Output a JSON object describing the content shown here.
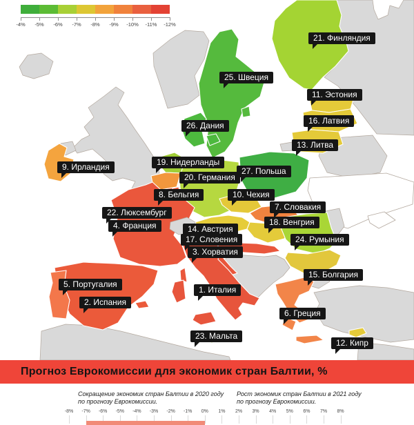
{
  "legend": {
    "colors": [
      "#3fae3b",
      "#5cbc35",
      "#a8d036",
      "#ddc733",
      "#f2a33b",
      "#f0823c",
      "#e9603f",
      "#e34234"
    ],
    "ticks": [
      "-4%",
      "-5%",
      "-6%",
      "-7%",
      "-8%",
      "-9%",
      "-10%",
      "-11%",
      "-12%"
    ]
  },
  "countries": [
    {
      "id": "italy",
      "label": "1. Италия",
      "color": "#e7553c"
    },
    {
      "id": "spain",
      "label": "2. Испания",
      "color": "#eb5a3a"
    },
    {
      "id": "croatia",
      "label": "3. Хорватия",
      "color": "#e9563c"
    },
    {
      "id": "france",
      "label": "4. Франция",
      "color": "#ea573c"
    },
    {
      "id": "portugal",
      "label": "5. Португалия",
      "color": "#f3774b"
    },
    {
      "id": "greece",
      "label": "6. Греция",
      "color": "#f28549"
    },
    {
      "id": "slovakia",
      "label": "7. Словакия",
      "color": "#f0823f"
    },
    {
      "id": "belgium",
      "label": "8. Бельгия",
      "color": "#f2973d"
    },
    {
      "id": "ireland",
      "label": "9. Ирландия",
      "color": "#f4a43e"
    },
    {
      "id": "czechia",
      "label": "10. Чехия",
      "color": "#e4c839"
    },
    {
      "id": "estonia",
      "label": "11. Эстония",
      "color": "#e4ca39"
    },
    {
      "id": "cyprus",
      "label": "12. Кипр",
      "color": "#e4ca39"
    },
    {
      "id": "lithuania",
      "label": "13. Литва",
      "color": "#e4ca39"
    },
    {
      "id": "austria",
      "label": "14. Австрия",
      "color": "#e6cc3a"
    },
    {
      "id": "bulgaria",
      "label": "15. Болгария",
      "color": "#e2c73c"
    },
    {
      "id": "latvia",
      "label": "16. Латвия",
      "color": "#e4ca39"
    },
    {
      "id": "slovenia",
      "label": "17. Словения",
      "color": "#e0c839"
    },
    {
      "id": "hungary",
      "label": "18. Венгрия",
      "color": "#e4cb3a"
    },
    {
      "id": "netherlands",
      "label": "19. Нидерланды",
      "color": "#a0ce36"
    },
    {
      "id": "germany",
      "label": "20. Германия",
      "color": "#b6d840"
    },
    {
      "id": "finland",
      "label": "21. Финляндия",
      "color": "#a4d433"
    },
    {
      "id": "luxembourg",
      "label": "22. Люксембург",
      "color": "#e8563c"
    },
    {
      "id": "malta",
      "label": "23. Мальта",
      "color": "#96d02f"
    },
    {
      "id": "romania",
      "label": "24. Румыния",
      "color": "#a9d636"
    },
    {
      "id": "sweden",
      "label": "25. Швеция",
      "color": "#55ba3d"
    },
    {
      "id": "denmark",
      "label": "26. Дания",
      "color": "#4db93e"
    },
    {
      "id": "poland",
      "label": "27. Польша",
      "color": "#3fae44"
    }
  ],
  "neutral": {
    "land_color": "#d9d9d9",
    "no_data_fill": "#ffffff",
    "outline_color": "#b3a89e"
  },
  "banner": {
    "title": "Прогноз Еврокомиссии для экономик стран Балтии, %",
    "bg_color": "#ef4539"
  },
  "footer": {
    "left_note_line1": "Сокращение экономик стран Балтии в 2020 году",
    "left_note_line2": "по прогнозу Еврокомиссии.",
    "right_note_line1": "Рост экономик стран Балтии в 2021 году",
    "right_note_line2": "по прогнозу Еврокомиссии.",
    "axis_ticks": [
      "-8%",
      "-7%",
      "-6%",
      "-5%",
      "-4%",
      "-3%",
      "-2%",
      "-1%",
      "0%",
      "1%",
      "2%",
      "3%",
      "4%",
      "5%",
      "6%",
      "7%",
      "8%"
    ],
    "partial_bar_color": "#f18a77"
  }
}
